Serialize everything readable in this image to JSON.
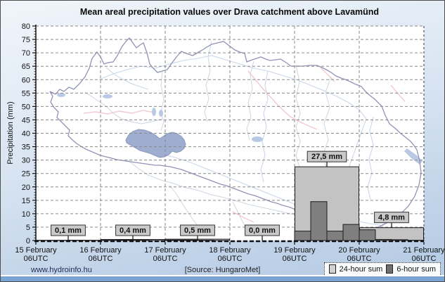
{
  "title": "Mean areal precipitation values over Drava catchment above Lavamünd",
  "footer": {
    "site": "www.hydroinfo.hu",
    "source": "[Source: HungaroMet]"
  },
  "legend": [
    {
      "label": "24-hour sum",
      "color": "#c3c3c3"
    },
    {
      "label": "6-hour sum",
      "color": "#7f7f7f"
    }
  ],
  "colors": {
    "bar_24h": "#c3c3c3",
    "bar_6h": "#7f7f7f",
    "bar_border": "#1c1c1c",
    "grid": "#8a8a8a",
    "axis": "#111111",
    "annotation_box": "#c9c9c9",
    "catchment_fill": "#9fadd0",
    "plot_background": "#ffffff"
  },
  "chart_data": {
    "type": "bar",
    "title": "Mean areal precipitation values over Drava catchment above Lavamünd",
    "xlabel": "",
    "ylabel": "Precipitation (mm)",
    "ylim": [
      0,
      80
    ],
    "ytick_step": 5,
    "grid": "dashed",
    "legend_position": "bottom-right",
    "x_categories": [
      {
        "date": "15 February",
        "time": "06UTC"
      },
      {
        "date": "16 February",
        "time": "06UTC"
      },
      {
        "date": "17 February",
        "time": "06UTC"
      },
      {
        "date": "18 February",
        "time": "06UTC"
      },
      {
        "date": "19 February",
        "time": "06UTC"
      },
      {
        "date": "20 February",
        "time": "06UTC"
      },
      {
        "date": "21 February",
        "time": "06UTC"
      }
    ],
    "series": [
      {
        "name": "24-hour sum",
        "color": "#c3c3c3",
        "values": [
          0.1,
          0.4,
          0.5,
          0.0,
          27.5,
          4.8
        ],
        "labels": [
          "0,1 mm",
          "0,4 mm",
          "0,5 mm",
          "0,0 mm",
          "27,5 mm",
          "4,8 mm"
        ]
      },
      {
        "name": "6-hour sum",
        "color": "#7f7f7f",
        "values": [
          [
            0.0,
            0.0,
            0.1,
            0.0
          ],
          [
            0.1,
            0.2,
            0.1,
            0.0
          ],
          [
            0.2,
            0.2,
            0.1,
            0.0
          ],
          [
            0.0,
            0.0,
            0.0,
            0.0
          ],
          [
            3.5,
            14.5,
            3.5,
            6.0
          ],
          [
            4.0,
            0.4,
            0.3,
            0.1
          ]
        ]
      }
    ]
  }
}
